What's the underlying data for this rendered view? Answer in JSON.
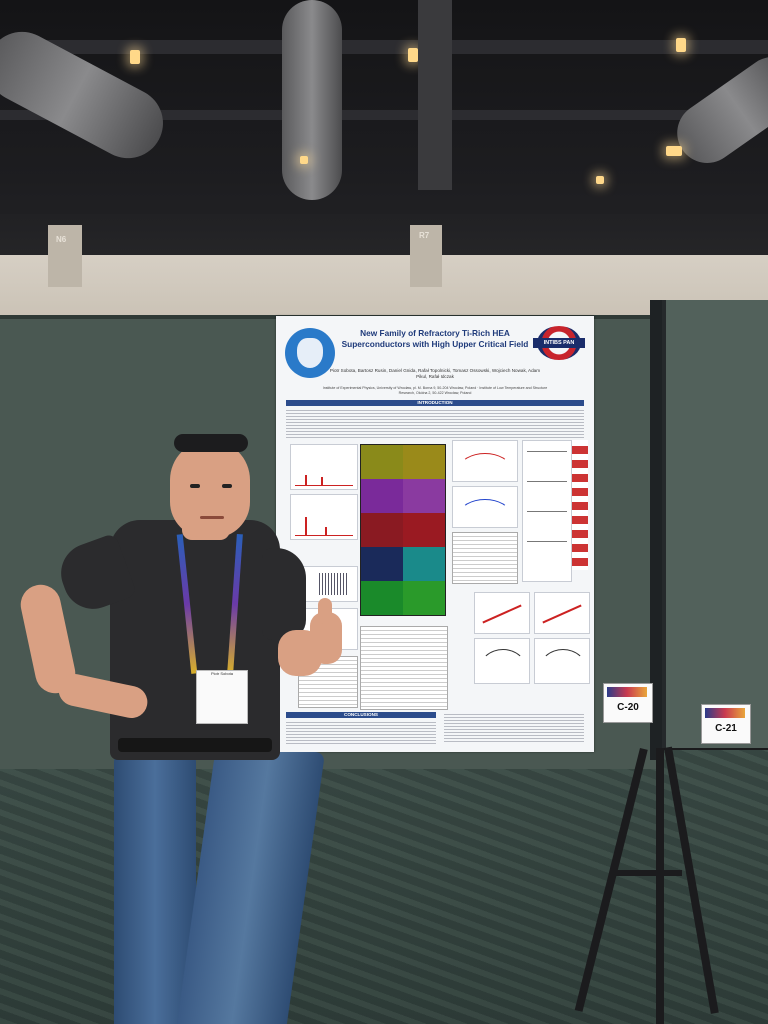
{
  "scene": {
    "pillar_labels": [
      "N6",
      "R7"
    ],
    "booth_signs": [
      {
        "label": "C-20"
      },
      {
        "label": "C-21"
      }
    ]
  },
  "poster": {
    "title": "New Family of Refractory Ti-Rich HEA Superconductors with High Upper Critical Field",
    "authors": "Piotr Sobota, Bartosz Rusin, Daniel Gnida, Rafał Topolnicki, Tomasz Ossowski, Wojciech Nowak, Adam Pikul, Rafał Idczak",
    "affiliations": "Institute of Experimental Physics, University of Wrocław, pl. M. Borna 9, 50-204 Wrocław, Poland · Institute of Low Temperature and Structure Research, Okólna 2, 50-422 Wrocław, Poland",
    "logo_right": "INTIBS PAN",
    "section_intro": "INTRODUCTION",
    "section_conclusions": "CONCLUSIONS",
    "colors": {
      "title": "#1e3a7a",
      "section_bar": "#2c4c8c",
      "emblem": "#2a7ac9",
      "map_tiles": [
        "#8a8a1a",
        "#9a8a1a",
        "#7a2a9a",
        "#8a3aa0",
        "#8a1a22",
        "#9a1a22",
        "#1a2a5a",
        "#1a8a8a",
        "#1a8a2a",
        "#2a9a2a"
      ]
    }
  },
  "badge": {
    "text": "Piotr Sobota"
  }
}
